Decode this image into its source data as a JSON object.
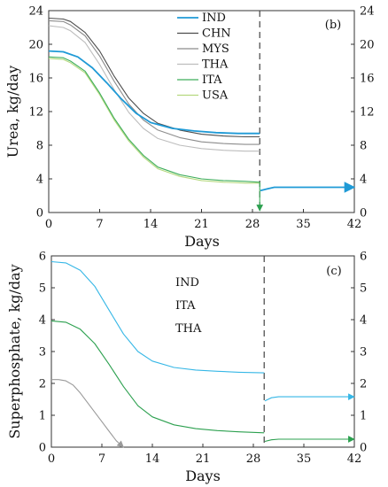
{
  "colors": {
    "IND": "#1f9ad6",
    "CHN": "#4d4d4d",
    "MYS": "#8c8c8c",
    "THA": "#bdbdbd",
    "ITA": "#3fae5b",
    "USA": "#b5d97f",
    "IND_c": "#36b7e6",
    "ITA_c": "#2ca04f",
    "THA_c": "#9a9a9a"
  },
  "chart_data": [
    {
      "type": "line",
      "panel_label": "(b)",
      "xlabel": "Days",
      "ylabel": "Urea, kg/day",
      "xlim": [
        0,
        42
      ],
      "ylim": [
        0,
        24
      ],
      "x_ticks": [
        "0",
        "7",
        "14",
        "21",
        "28",
        "35",
        "42"
      ],
      "y_ticks": [
        "0",
        "4",
        "8",
        "12",
        "16",
        "20",
        "24"
      ],
      "y_ticks_right": [
        "0",
        "4",
        "8",
        "12",
        "16",
        "20",
        "24"
      ],
      "phase_boundary_day": 29,
      "grid": false,
      "legend_position": "top-center",
      "series": [
        {
          "name": "IND",
          "x": [
            0,
            2,
            4,
            6,
            8,
            10,
            12,
            14,
            17,
            20,
            23,
            26,
            29
          ],
          "values": [
            19.2,
            19.1,
            18.5,
            17.2,
            15.4,
            13.5,
            11.8,
            10.7,
            10.0,
            9.7,
            9.5,
            9.4,
            9.4
          ],
          "segment2": {
            "x": [
              29.1,
              30,
              31,
              33,
              36,
              39,
              42
            ],
            "values": [
              2.6,
              2.8,
              3.0,
              3.0,
              3.0,
              3.0,
              3.0
            ]
          }
        },
        {
          "name": "CHN",
          "x": [
            0,
            2,
            3,
            5,
            7,
            9,
            11,
            13,
            15,
            18,
            21,
            24,
            27,
            29
          ],
          "values": [
            23.1,
            23.0,
            22.7,
            21.4,
            19.2,
            16.2,
            13.6,
            11.8,
            10.6,
            9.8,
            9.3,
            9.1,
            9.0,
            9.0
          ]
        },
        {
          "name": "MYS",
          "x": [
            0,
            2,
            3,
            5,
            7,
            9,
            11,
            13,
            15,
            18,
            21,
            24,
            27,
            29
          ],
          "values": [
            22.8,
            22.7,
            22.3,
            21.0,
            18.6,
            15.6,
            12.9,
            11.0,
            9.8,
            8.9,
            8.4,
            8.2,
            8.1,
            8.1
          ]
        },
        {
          "name": "THA",
          "x": [
            0,
            2,
            3,
            5,
            7,
            9,
            11,
            13,
            15,
            18,
            21,
            24,
            27,
            29
          ],
          "values": [
            22.2,
            22.0,
            21.6,
            20.2,
            17.6,
            14.6,
            11.9,
            10.0,
            8.8,
            8.0,
            7.6,
            7.4,
            7.3,
            7.3
          ]
        },
        {
          "name": "ITA",
          "x": [
            0,
            2,
            3,
            5,
            7,
            9,
            11,
            13,
            15,
            18,
            21,
            24,
            27,
            29
          ],
          "values": [
            18.5,
            18.4,
            18.0,
            16.8,
            14.2,
            11.2,
            8.7,
            6.8,
            5.4,
            4.5,
            4.0,
            3.8,
            3.7,
            3.6
          ]
        },
        {
          "name": "USA",
          "x": [
            0,
            2,
            3,
            5,
            7,
            9,
            11,
            13,
            15,
            18,
            21,
            24,
            27,
            29
          ],
          "values": [
            18.3,
            18.2,
            17.8,
            16.6,
            14.0,
            11.0,
            8.5,
            6.6,
            5.2,
            4.3,
            3.8,
            3.6,
            3.5,
            3.5
          ]
        }
      ]
    },
    {
      "type": "line",
      "panel_label": "(c)",
      "xlabel": "Days",
      "ylabel": "Superphosphate, kg/day",
      "xlim": [
        0,
        42
      ],
      "ylim": [
        0,
        6
      ],
      "x_ticks": [
        "0",
        "7",
        "14",
        "21",
        "28",
        "35",
        "42"
      ],
      "y_ticks": [
        "0",
        "1",
        "2",
        "3",
        "4",
        "5",
        "6"
      ],
      "y_ticks_right": [
        "0",
        "1",
        "2",
        "3",
        "4",
        "5",
        "6"
      ],
      "phase_boundary_day": 29.5,
      "grid": false,
      "legend_position": "top-center",
      "series": [
        {
          "name": "IND",
          "x": [
            0,
            2,
            4,
            6,
            8,
            10,
            12,
            14,
            17,
            20,
            23,
            26,
            29.5
          ],
          "values": [
            5.82,
            5.78,
            5.55,
            5.05,
            4.3,
            3.55,
            3.0,
            2.7,
            2.5,
            2.42,
            2.38,
            2.35,
            2.33
          ],
          "segment2": {
            "x": [
              29.6,
              30.5,
              31.5,
              34,
              37,
              42
            ],
            "values": [
              1.45,
              1.55,
              1.58,
              1.58,
              1.58,
              1.58
            ]
          }
        },
        {
          "name": "ITA",
          "x": [
            0,
            2,
            4,
            6,
            8,
            10,
            12,
            14,
            17,
            20,
            23,
            26,
            29.5
          ],
          "values": [
            3.96,
            3.92,
            3.7,
            3.25,
            2.6,
            1.9,
            1.3,
            0.95,
            0.7,
            0.58,
            0.52,
            0.48,
            0.45
          ],
          "segment2": {
            "x": [
              29.6,
              30.5,
              31.5,
              34,
              37,
              42
            ],
            "values": [
              0.18,
              0.23,
              0.25,
              0.25,
              0.25,
              0.25
            ]
          }
        },
        {
          "name": "THA",
          "x": [
            0,
            1,
            2,
            3,
            4,
            5,
            6,
            7,
            8,
            9,
            10
          ],
          "values": [
            2.12,
            2.12,
            2.08,
            1.95,
            1.7,
            1.4,
            1.1,
            0.8,
            0.5,
            0.2,
            0.0
          ]
        }
      ]
    }
  ]
}
